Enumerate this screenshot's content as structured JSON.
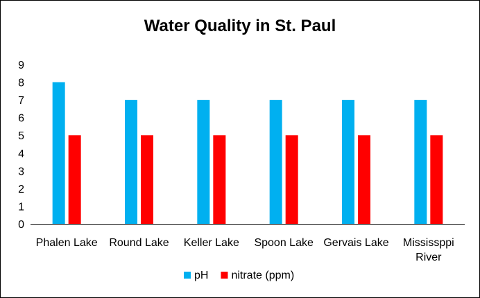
{
  "chart_data": {
    "type": "bar",
    "title": "Water Quality in St. Paul",
    "categories": [
      [
        "Phalen Lake"
      ],
      [
        "Round Lake"
      ],
      [
        "Keller Lake"
      ],
      [
        "Spoon Lake"
      ],
      [
        "Gervais Lake"
      ],
      [
        "Mississppi",
        "River"
      ]
    ],
    "series": [
      {
        "name": "pH",
        "color": "#00B0F0",
        "values": [
          8,
          7,
          7,
          7,
          7,
          7
        ]
      },
      {
        "name": "nitrate (ppm)",
        "color": "#FF0000",
        "values": [
          5,
          5,
          5,
          5,
          5,
          5
        ]
      }
    ],
    "ylim": [
      0,
      9
    ],
    "yticks": [
      0,
      1,
      2,
      3,
      4,
      5,
      6,
      7,
      8,
      9
    ],
    "grid": false,
    "legend_position": "bottom"
  }
}
